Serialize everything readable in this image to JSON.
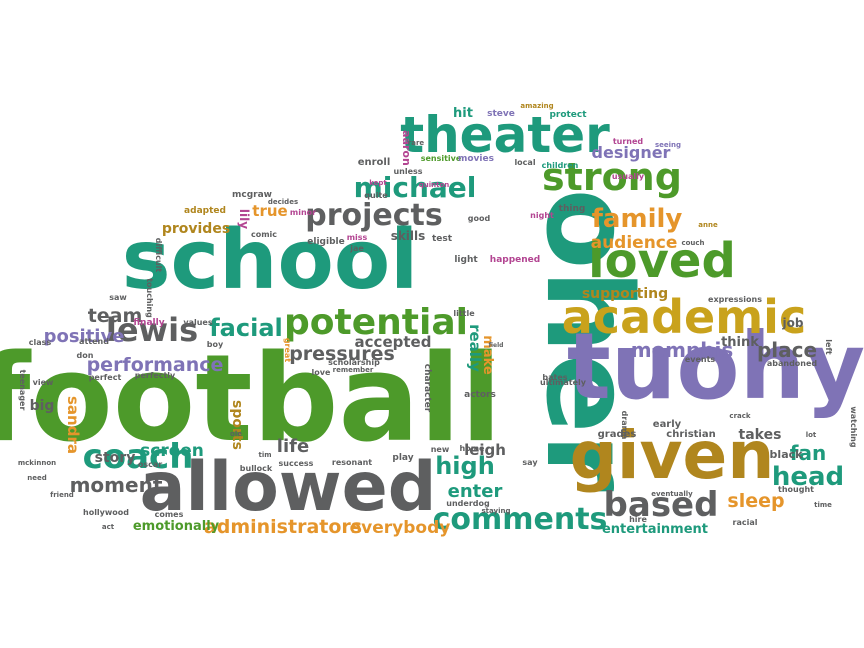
{
  "palette": {
    "green": "#4d9a2a",
    "teal": "#1e9a7c",
    "purple": "#7f73b6",
    "gray": "#5e5f60",
    "gold": "#b0861e",
    "orange": "#e5952b",
    "magenta": "#b34592",
    "darkgray": "#646464",
    "yellow": "#c9a21c"
  },
  "words": [
    {
      "text": "football",
      "color": "green"
    },
    {
      "text": "school",
      "color": "teal"
    },
    {
      "text": "oher",
      "color": "teal"
    },
    {
      "text": "tuohy",
      "color": "purple"
    },
    {
      "text": "allowed",
      "color": "gray"
    },
    {
      "text": "given",
      "color": "gold"
    },
    {
      "text": "theater",
      "color": "teal"
    },
    {
      "text": "academic",
      "color": "yellow"
    },
    {
      "text": "loved",
      "color": "green"
    },
    {
      "text": "strong",
      "color": "green"
    },
    {
      "text": "potential",
      "color": "green"
    },
    {
      "text": "michael",
      "color": "teal"
    },
    {
      "text": "projects",
      "color": "gray"
    },
    {
      "text": "coach",
      "color": "teal"
    },
    {
      "text": "comments",
      "color": "teal"
    },
    {
      "text": "based",
      "color": "gray"
    },
    {
      "text": "lewis",
      "color": "gray"
    },
    {
      "text": "facial",
      "color": "teal"
    },
    {
      "text": "family",
      "color": "orange"
    },
    {
      "text": "head",
      "color": "teal"
    },
    {
      "text": "pressures",
      "color": "gray"
    },
    {
      "text": "memphis",
      "color": "purple"
    },
    {
      "text": "place",
      "color": "gray"
    },
    {
      "text": "moment",
      "color": "gray"
    },
    {
      "text": "performance",
      "color": "purple"
    },
    {
      "text": "positive",
      "color": "purple"
    },
    {
      "text": "team",
      "color": "gray"
    },
    {
      "text": "high",
      "color": "teal"
    },
    {
      "text": "administrators",
      "color": "orange"
    },
    {
      "text": "everybody",
      "color": "orange"
    },
    {
      "text": "enter",
      "color": "teal"
    },
    {
      "text": "sleep",
      "color": "orange"
    },
    {
      "text": "fan",
      "color": "teal"
    },
    {
      "text": "audience",
      "color": "orange"
    },
    {
      "text": "supporting",
      "color": "gold"
    },
    {
      "text": "provides",
      "color": "gold"
    },
    {
      "text": "true",
      "color": "orange"
    },
    {
      "text": "lily",
      "color": "magenta"
    },
    {
      "text": "designer",
      "color": "purple"
    },
    {
      "text": "screen",
      "color": "teal"
    },
    {
      "text": "story",
      "color": "gray"
    },
    {
      "text": "life",
      "color": "gray"
    },
    {
      "text": "sandra",
      "color": "orange"
    },
    {
      "text": "leigh",
      "color": "gray"
    },
    {
      "text": "really",
      "color": "teal"
    },
    {
      "text": "make",
      "color": "orange"
    },
    {
      "text": "accepted",
      "color": "gray"
    },
    {
      "text": "emotionally",
      "color": "green"
    },
    {
      "text": "entertainment",
      "color": "teal"
    },
    {
      "text": "takes",
      "color": "gray"
    },
    {
      "text": "think",
      "color": "gray"
    },
    {
      "text": "job",
      "color": "gray"
    },
    {
      "text": "sports",
      "color": "gold"
    },
    {
      "text": "skills",
      "color": "gray"
    },
    {
      "text": "hit",
      "color": "teal"
    },
    {
      "text": "aaron",
      "color": "magenta"
    },
    {
      "text": "big",
      "color": "gray"
    },
    {
      "text": "christian",
      "color": "gray"
    },
    {
      "text": "black",
      "color": "gray"
    },
    {
      "text": "events",
      "color": "gray"
    },
    {
      "text": "grades",
      "color": "gray"
    },
    {
      "text": "early",
      "color": "gray"
    },
    {
      "text": "scholarship",
      "color": "gray"
    },
    {
      "text": "steve",
      "color": "purple"
    },
    {
      "text": "amazing",
      "color": "gold"
    },
    {
      "text": "protect",
      "color": "teal"
    },
    {
      "text": "rare",
      "color": "gray"
    },
    {
      "text": "turned",
      "color": "magenta"
    },
    {
      "text": "seeing",
      "color": "purple"
    },
    {
      "text": "enroll",
      "color": "gray"
    },
    {
      "text": "sensitive",
      "color": "green"
    },
    {
      "text": "movies",
      "color": "purple"
    },
    {
      "text": "local",
      "color": "gray"
    },
    {
      "text": "children",
      "color": "teal"
    },
    {
      "text": "usually",
      "color": "magenta"
    },
    {
      "text": "kept",
      "color": "magenta"
    },
    {
      "text": "unless",
      "color": "gray"
    },
    {
      "text": "quinton",
      "color": "magenta"
    },
    {
      "text": "quite",
      "color": "gray"
    },
    {
      "text": "mcgraw",
      "color": "gray"
    },
    {
      "text": "decides",
      "color": "gray"
    },
    {
      "text": "adapted",
      "color": "gold"
    },
    {
      "text": "minor",
      "color": "magenta"
    },
    {
      "text": "comic",
      "color": "gray"
    },
    {
      "text": "eligible",
      "color": "gray"
    },
    {
      "text": "miss",
      "color": "magenta"
    },
    {
      "text": "jae",
      "color": "gray"
    },
    {
      "text": "test",
      "color": "gray"
    },
    {
      "text": "good",
      "color": "gray"
    },
    {
      "text": "night",
      "color": "magenta"
    },
    {
      "text": "thing",
      "color": "gray"
    },
    {
      "text": "light",
      "color": "gray"
    },
    {
      "text": "happened",
      "color": "magenta"
    },
    {
      "text": "anne",
      "color": "gold"
    },
    {
      "text": "couch",
      "color": "gray"
    },
    {
      "text": "difficult",
      "color": "gray"
    },
    {
      "text": "touching",
      "color": "gray"
    },
    {
      "text": "saw",
      "color": "gray"
    },
    {
      "text": "finally",
      "color": "magenta"
    },
    {
      "text": "values",
      "color": "gray"
    },
    {
      "text": "boy",
      "color": "gray"
    },
    {
      "text": "attend",
      "color": "gray"
    },
    {
      "text": "class",
      "color": "gray"
    },
    {
      "text": "don",
      "color": "gray"
    },
    {
      "text": "perfect",
      "color": "gray"
    },
    {
      "text": "perfectly",
      "color": "gray"
    },
    {
      "text": "teenager",
      "color": "gray"
    },
    {
      "text": "view",
      "color": "gray"
    },
    {
      "text": "great",
      "color": "orange"
    },
    {
      "text": "love",
      "color": "gray"
    },
    {
      "text": "remember",
      "color": "gray"
    },
    {
      "text": "character",
      "color": "gray"
    },
    {
      "text": "actors",
      "color": "gray"
    },
    {
      "text": "ultimately",
      "color": "gray"
    },
    {
      "text": "field",
      "color": "gray"
    },
    {
      "text": "little",
      "color": "gray"
    },
    {
      "text": "expressions",
      "color": "gray"
    },
    {
      "text": "left",
      "color": "gray"
    },
    {
      "text": "abandoned",
      "color": "gray"
    },
    {
      "text": "drama",
      "color": "gray"
    },
    {
      "text": "crack",
      "color": "gray"
    },
    {
      "text": "lot",
      "color": "gray"
    },
    {
      "text": "watching",
      "color": "gray"
    },
    {
      "text": "thought",
      "color": "gray"
    },
    {
      "text": "time",
      "color": "gray"
    },
    {
      "text": "racial",
      "color": "gray"
    },
    {
      "text": "hire",
      "color": "gray"
    },
    {
      "text": "eventually",
      "color": "gray"
    },
    {
      "text": "say",
      "color": "gray"
    },
    {
      "text": "new",
      "color": "gray"
    },
    {
      "text": "home",
      "color": "gray"
    },
    {
      "text": "bates",
      "color": "gray"
    },
    {
      "text": "underdog",
      "color": "gray"
    },
    {
      "text": "staying",
      "color": "gray"
    },
    {
      "text": "play",
      "color": "gray"
    },
    {
      "text": "resonant",
      "color": "gray"
    },
    {
      "text": "success",
      "color": "gray"
    },
    {
      "text": "bullock",
      "color": "gray"
    },
    {
      "text": "tim",
      "color": "gray"
    },
    {
      "text": "oscar",
      "color": "gray"
    },
    {
      "text": "ole",
      "color": "gray"
    },
    {
      "text": "mckinnon",
      "color": "gray"
    },
    {
      "text": "need",
      "color": "gray"
    },
    {
      "text": "friend",
      "color": "gray"
    },
    {
      "text": "hollywood",
      "color": "gray"
    },
    {
      "text": "comes",
      "color": "gray"
    },
    {
      "text": "act",
      "color": "gray"
    }
  ]
}
